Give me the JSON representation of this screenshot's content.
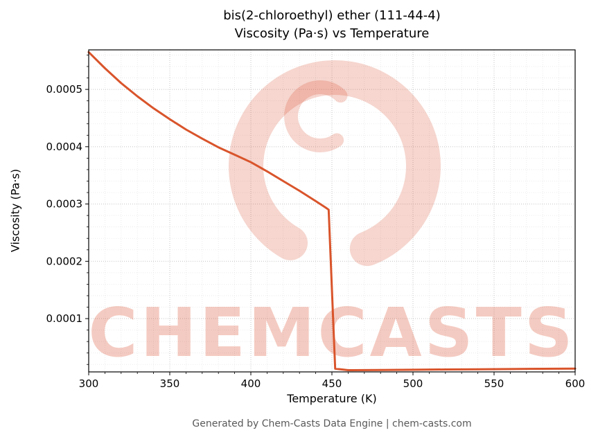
{
  "footer": "Generated by Chem-Casts Data Engine | chem-casts.com",
  "watermark": {
    "text": "CHEMCASTS",
    "color": "#d64523"
  },
  "chart_data": {
    "type": "line",
    "title": "bis(2-chloroethyl) ether (111-44-4) Viscosity (Pa·s) vs Temperature",
    "title_lines": [
      "bis(2-chloroethyl) ether (111-44-4)",
      "Viscosity (Pa·s) vs Temperature"
    ],
    "xlabel": "Temperature (K)",
    "ylabel": "Viscosity (Pa·s)",
    "xlim": [
      300,
      600
    ],
    "ylim": [
      7e-06,
      0.000569
    ],
    "x_ticks": [
      300,
      350,
      400,
      450,
      500,
      550,
      600
    ],
    "x_tick_labels": [
      "300",
      "350",
      "400",
      "450",
      "500",
      "550",
      "600"
    ],
    "y_ticks": [
      0.0001,
      0.0002,
      0.0003,
      0.0004,
      0.0005
    ],
    "y_tick_labels": [
      "0.0001",
      "0.0002",
      "0.0003",
      "0.0004",
      "0.0005"
    ],
    "x_minor_step": 10,
    "y_minor_step": 2e-05,
    "grid": true,
    "legend": "none",
    "line_color": "#d9542b",
    "series": [
      {
        "name": "viscosity",
        "points": [
          [
            300,
            0.000565
          ],
          [
            310,
            0.000537
          ],
          [
            320,
            0.000511
          ],
          [
            330,
            0.000488
          ],
          [
            340,
            0.000467
          ],
          [
            350,
            0.000448
          ],
          [
            360,
            0.00043
          ],
          [
            370,
            0.000414
          ],
          [
            380,
            0.000399
          ],
          [
            390,
            0.000386
          ],
          [
            400,
            0.000373
          ],
          [
            410,
            0.000357
          ],
          [
            420,
            0.00034
          ],
          [
            430,
            0.000323
          ],
          [
            440,
            0.000305
          ],
          [
            446,
            0.000294
          ],
          [
            448,
            0.00029
          ],
          [
            452,
            1.25e-05
          ],
          [
            460,
            1e-05
          ],
          [
            480,
            1.04e-05
          ],
          [
            500,
            1.08e-05
          ],
          [
            520,
            1.12e-05
          ],
          [
            540,
            1.16e-05
          ],
          [
            560,
            1.2e-05
          ],
          [
            580,
            1.24e-05
          ],
          [
            600,
            1.28e-05
          ]
        ]
      }
    ]
  }
}
